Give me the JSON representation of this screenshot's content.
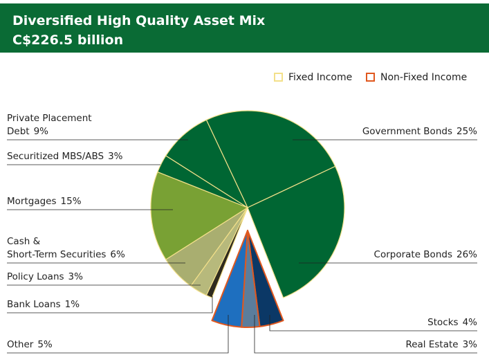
{
  "chart_data": {
    "type": "pie",
    "title": "Diversified High Quality Asset Mix",
    "subtitle": "C$226.5 billion",
    "categories": [
      "Government Bonds",
      "Corporate Bonds",
      "Stocks",
      "Real Estate",
      "Other",
      "Bank Loans",
      "Policy Loans",
      "Cash &\nShort-Term Securities",
      "Mortgages",
      "Securitized MBS/ABS",
      "Private Placement\nDebt"
    ],
    "values": [
      25,
      26,
      4,
      3,
      5,
      1,
      3,
      6,
      15,
      3,
      9
    ],
    "value_labels": [
      "25%",
      "26%",
      "4%",
      "3%",
      "5%",
      "1%",
      "3%",
      "6%",
      "15%",
      "3%",
      "9%"
    ],
    "colors": [
      "#006633",
      "#006633",
      "#0b3866",
      "#5b7d9c",
      "#1e6fbf",
      "#2f2b1f",
      "#b7b97c",
      "#a9ae70",
      "#79a134",
      "#006633",
      "#006633"
    ],
    "edge_colors": [
      "#f3e08a",
      "#f3e08a",
      "#e0581f",
      "#e0581f",
      "#e0581f",
      "#f3e08a",
      "#f3e08a",
      "#f3e08a",
      "#f3e08a",
      "#f3e08a",
      "#f3e08a"
    ],
    "explode": [
      false,
      false,
      true,
      true,
      true,
      false,
      false,
      false,
      false,
      false,
      false
    ],
    "legend": [
      {
        "name": "Fixed Income",
        "color": "#f3e08a"
      },
      {
        "name": "Non-Fixed Income",
        "color": "#e0581f"
      }
    ],
    "header_color": "#0a6b35"
  }
}
